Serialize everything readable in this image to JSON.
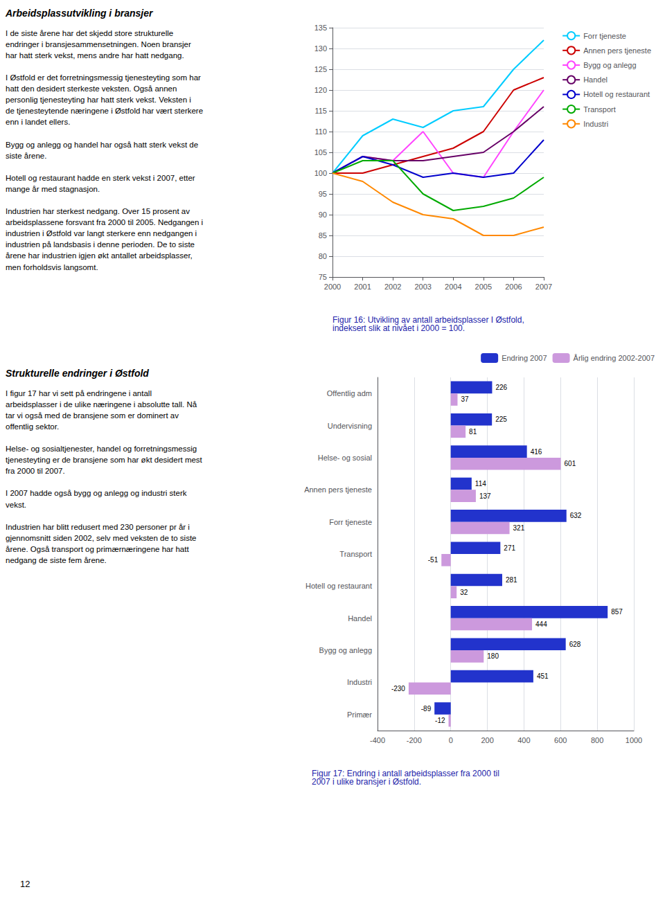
{
  "page_number": "12",
  "annotations": [
    {
      "title": "Arbeidsplassutvikling i bransjer",
      "text": "I de siste årene har det skjedd store strukturelle\nendringer i bransjesammensetningen.  Noen bransjer\nhar hatt sterk vekst, mens andre har hatt nedgang.\n\nI Østfold er det forretningsmessig tjenesteyting som har\nhatt den desidert sterkeste veksten.  Også annen\npersonlig tjenesteyting har hatt sterk vekst.  Veksten i\nde tjenesteytende næringene i Østfold har vært sterkere\nenn i landet ellers.\n\nBygg og anlegg og handel har også hatt sterk vekst de\nsiste årene.\n\nHotell og restaurant hadde en sterk vekst i 2007, etter\nmange år med stagnasjon.\n\nIndustrien har sterkest nedgang.  Over 15 prosent av\narbeidsplassene forsvant fra 2000 til 2005.  Nedgangen i\nindustrien i Østfold var langt sterkere enn nedgangen i\nindustrien på landsbasis i denne perioden.  De to siste\nårene har industrien igjen økt antallet arbeidsplasser,\nmen forholdsvis langsomt."
    },
    {
      "title": "Strukturelle endringer i Østfold",
      "text": "I figur 17 har vi sett på endringene i antall\narbeidsplasser i de ulike næringene i absolutte tall.  Nå\ntar vi også med de bransjene som er dominert av\noffentlig sektor.\n\nHelse- og sosialtjenester, handel og forretningsmessig\ntjenesteyting er de bransjene som har økt desidert mest\nfra 2000 til 2007.\n\nI 2007 hadde også bygg og anlegg og industri sterk\nvekst.\n\nIndustrien har blitt redusert med 230 personer pr år i\ngjennomsnitt siden 2002, selv med veksten de to siste\nårene.  Også transport og primærnæringene har hatt\nnedgang de siste fem årene."
    }
  ],
  "chart_data": [
    {
      "type": "line",
      "title": "Figur 16: Utvikling av antall arbeidsplasser I Østfold,\nindeksert slik at nivået i 2000 = 100.",
      "x": [
        2000,
        2001,
        2002,
        2003,
        2004,
        2005,
        2006,
        2007
      ],
      "xlim": [
        2000,
        2007
      ],
      "xticks": [
        2000,
        2001,
        2002,
        2003,
        2004,
        2005,
        2006,
        2007
      ],
      "ylim": [
        75,
        135
      ],
      "yticks": [
        75,
        80,
        85,
        90,
        95,
        100,
        105,
        110,
        115,
        120,
        125,
        130,
        135
      ],
      "grid": true,
      "legend": "right",
      "series": [
        {
          "name": "Forr tjeneste",
          "color": "#00CCFF",
          "values": [
            100,
            109,
            113,
            111,
            115,
            116,
            125,
            132
          ]
        },
        {
          "name": "Annen pers tjeneste",
          "color": "#CC0000",
          "values": [
            100,
            100,
            102,
            104,
            106,
            110,
            120,
            123
          ]
        },
        {
          "name": "Bygg og anlegg",
          "color": "#FF44FF",
          "values": [
            100,
            104,
            103,
            110,
            100,
            99,
            110,
            120
          ]
        },
        {
          "name": "Handel",
          "color": "#660066",
          "values": [
            100,
            104,
            103,
            103,
            104,
            105,
            110,
            116
          ]
        },
        {
          "name": "Hotell og restaurant",
          "color": "#0000CC",
          "values": [
            100,
            104,
            102,
            99,
            100,
            99,
            100,
            108
          ]
        },
        {
          "name": "Transport",
          "color": "#00AA00",
          "values": [
            100,
            103,
            103,
            95,
            91,
            92,
            94,
            99
          ]
        },
        {
          "name": "Industri",
          "color": "#FF8800",
          "values": [
            100,
            98,
            93,
            90,
            89,
            85,
            85,
            87
          ]
        }
      ]
    },
    {
      "type": "bar",
      "orientation": "horizontal",
      "title": "Figur 17: Endring i antall arbeidsplasser fra 2000 til\n2007 i ulike bransjer i Østfold.",
      "categories": [
        "Offentlig adm",
        "Undervisning",
        "Helse- og sosial",
        "Annen pers tjeneste",
        "Forr tjeneste",
        "Transport",
        "Hotell og restaurant",
        "Handel",
        "Bygg og anlegg",
        "Industri",
        "Primær"
      ],
      "xlim": [
        -400,
        1000
      ],
      "xticks": [
        -400,
        -200,
        0,
        200,
        400,
        600,
        800,
        1000
      ],
      "grid": true,
      "legend": "upper right",
      "data_labels": true,
      "series": [
        {
          "name": "Endring 2007",
          "color": "#2233CC",
          "values": [
            226,
            225,
            416,
            114,
            632,
            271,
            281,
            857,
            628,
            451,
            -89
          ]
        },
        {
          "name": "Årlig endring 2002-2007",
          "color": "#CC99DD",
          "values": [
            37,
            81,
            601,
            137,
            321,
            -51,
            32,
            444,
            180,
            -230,
            -12
          ]
        }
      ]
    }
  ]
}
